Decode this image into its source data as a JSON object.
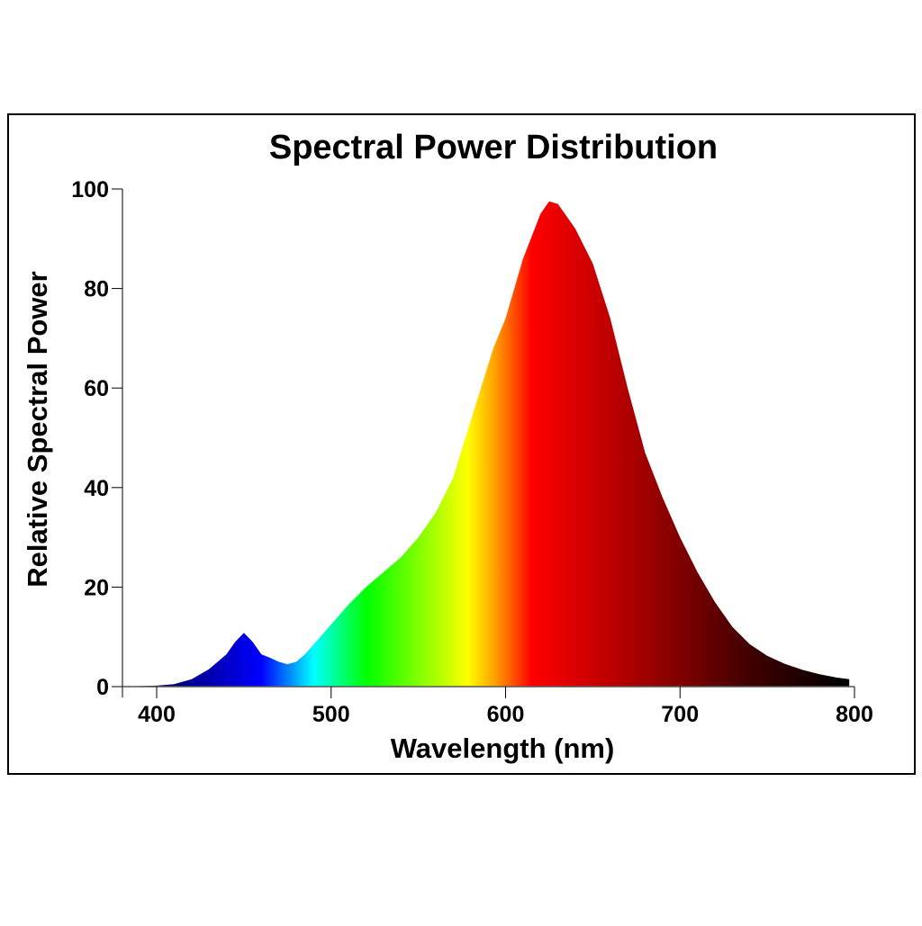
{
  "chart_data": {
    "type": "area",
    "title": "Spectral Power Distribution",
    "xlabel": "Wavelength (nm)",
    "ylabel": "Relative Spectral Power",
    "xlim": [
      380,
      800
    ],
    "ylim": [
      0,
      100
    ],
    "xticks": [
      400,
      500,
      600,
      700,
      800
    ],
    "yticks": [
      0,
      20,
      40,
      60,
      80,
      100
    ],
    "grid": false,
    "fill": "wavelength-colored spectrum gradient",
    "gradient_stops": [
      {
        "nm": 400,
        "color": "#000060"
      },
      {
        "nm": 440,
        "color": "#0000c8"
      },
      {
        "nm": 460,
        "color": "#0000ff"
      },
      {
        "nm": 490,
        "color": "#00ffff"
      },
      {
        "nm": 520,
        "color": "#00ff00"
      },
      {
        "nm": 560,
        "color": "#aaff00"
      },
      {
        "nm": 578,
        "color": "#ffff00"
      },
      {
        "nm": 595,
        "color": "#ff9900"
      },
      {
        "nm": 615,
        "color": "#ff0000"
      },
      {
        "nm": 680,
        "color": "#a00000"
      },
      {
        "nm": 740,
        "color": "#400000"
      },
      {
        "nm": 795,
        "color": "#000000"
      }
    ],
    "x": [
      380,
      400,
      410,
      420,
      430,
      440,
      445,
      450,
      455,
      460,
      465,
      470,
      475,
      480,
      485,
      490,
      500,
      510,
      520,
      530,
      540,
      550,
      560,
      570,
      577,
      585,
      593,
      600,
      610,
      620,
      625,
      630,
      640,
      650,
      660,
      670,
      680,
      690,
      700,
      710,
      720,
      730,
      740,
      750,
      760,
      770,
      780,
      790,
      797
    ],
    "y": [
      0,
      0.2,
      0.5,
      1.5,
      3.5,
      6.5,
      9,
      10.8,
      9,
      6.5,
      5.8,
      5,
      4.5,
      5,
      6.5,
      8.5,
      12.5,
      16.5,
      20,
      23,
      26,
      30,
      35,
      42,
      50,
      59,
      68,
      74,
      86,
      95,
      97.5,
      97,
      92,
      85,
      74,
      60,
      47,
      38,
      30,
      23,
      17,
      12,
      8.5,
      6.2,
      4.6,
      3.4,
      2.5,
      1.8,
      1.5
    ]
  }
}
